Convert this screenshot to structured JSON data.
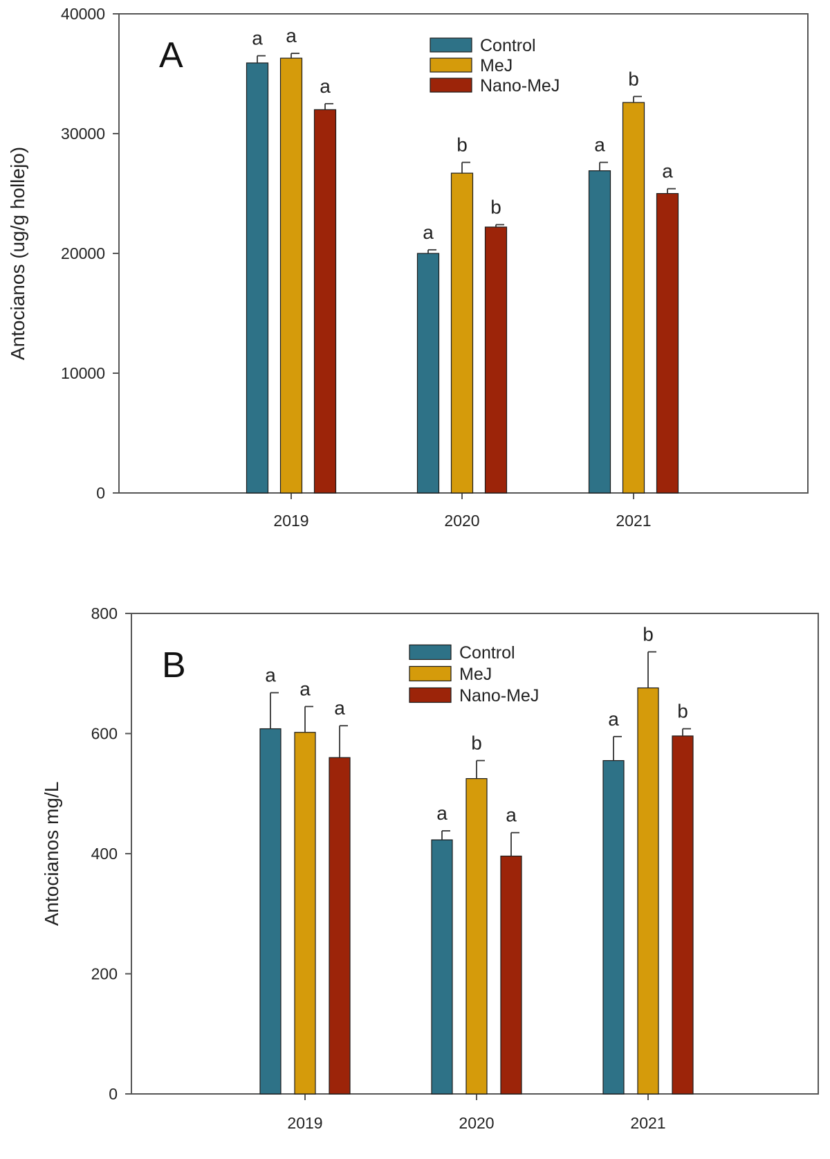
{
  "colors": {
    "Control": "#2e7287",
    "MeJ": "#d59b0b",
    "Nano-MeJ": "#9c2409",
    "axis": "#555555",
    "errorbar": "#333333"
  },
  "chart_data": [
    {
      "panel": "A",
      "type": "bar",
      "title": "",
      "xlabel": "",
      "ylabel": "Antocianos (ug/g hollejo)",
      "ylim": [
        0,
        40000
      ],
      "yticks": [
        "0",
        "10000",
        "20000",
        "30000",
        "40000"
      ],
      "categories": [
        "2019",
        "2020",
        "2021"
      ],
      "legend_position": "top-center",
      "series": [
        {
          "name": "Control",
          "values": [
            35900,
            20000,
            26900
          ],
          "errors": [
            600,
            300,
            700
          ],
          "labels": [
            "a",
            "a",
            "a"
          ]
        },
        {
          "name": "MeJ",
          "values": [
            36300,
            26700,
            32600
          ],
          "errors": [
            400,
            900,
            500
          ],
          "labels": [
            "a",
            "b",
            "b"
          ]
        },
        {
          "name": "Nano-MeJ",
          "values": [
            32000,
            22200,
            25000
          ],
          "errors": [
            500,
            200,
            400
          ],
          "labels": [
            "a",
            "b",
            "a"
          ]
        }
      ]
    },
    {
      "panel": "B",
      "type": "bar",
      "title": "",
      "xlabel": "",
      "ylabel": "Antocianos mg/L",
      "ylim": [
        0,
        800
      ],
      "yticks": [
        "0",
        "200",
        "400",
        "600",
        "800"
      ],
      "categories": [
        "2019",
        "2020",
        "2021"
      ],
      "legend_position": "top-center",
      "series": [
        {
          "name": "Control",
          "values": [
            608,
            423,
            555
          ],
          "errors": [
            60,
            15,
            40
          ],
          "labels": [
            "a",
            "a",
            "a"
          ]
        },
        {
          "name": "MeJ",
          "values": [
            602,
            525,
            676
          ],
          "errors": [
            43,
            30,
            60
          ],
          "labels": [
            "a",
            "b",
            "b"
          ]
        },
        {
          "name": "Nano-MeJ",
          "values": [
            560,
            396,
            596
          ],
          "errors": [
            53,
            39,
            12
          ],
          "labels": [
            "a",
            "a",
            "b"
          ]
        }
      ]
    }
  ]
}
